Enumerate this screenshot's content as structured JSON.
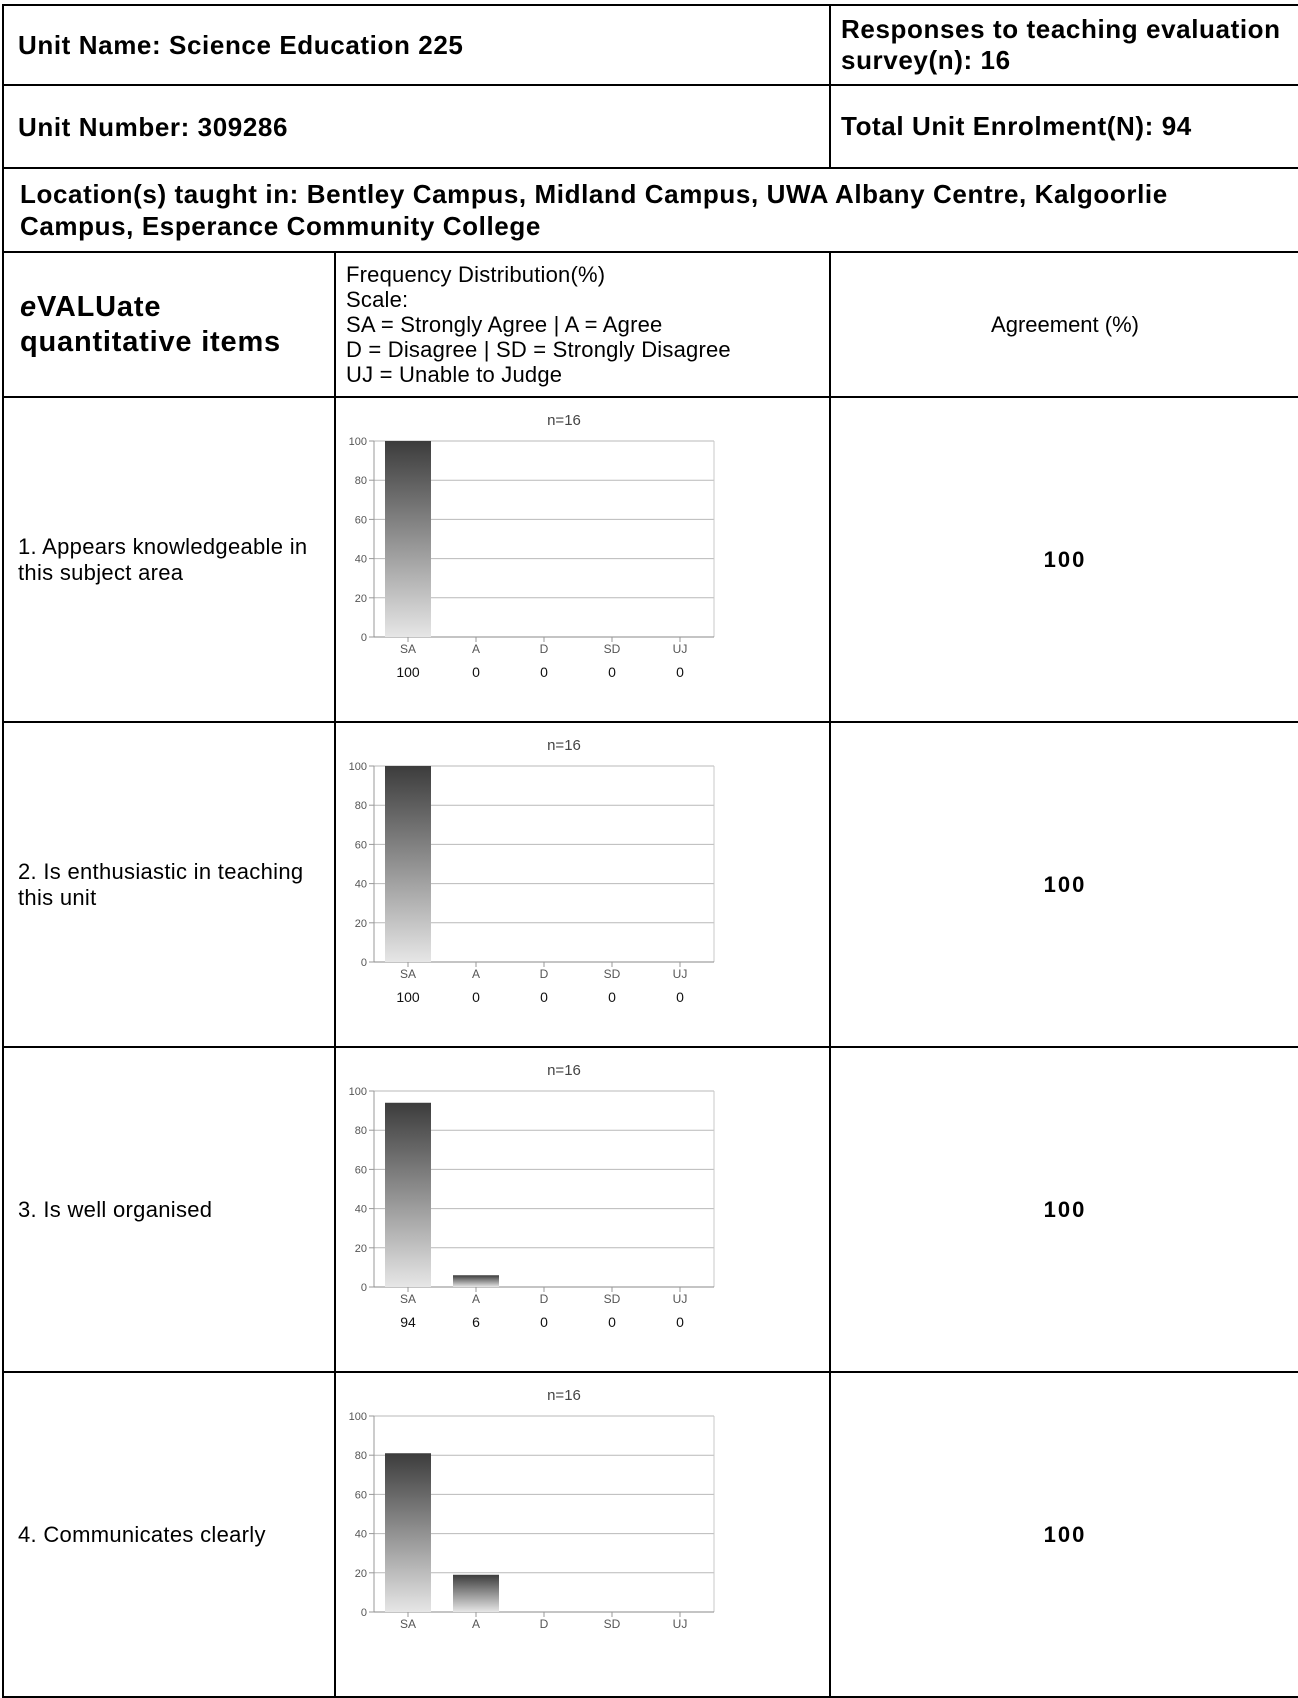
{
  "header": {
    "unit_name": "Unit Name: Science Education 225",
    "responses": "Responses to teaching evaluation survey(n): 16",
    "unit_number": "Unit Number: 309286",
    "enrolment": "Total Unit Enrolment(N): 94",
    "locations": "Location(s) taught in: Bentley Campus, Midland Campus, UWA Albany Centre, Kalgoorlie Campus, Esperance Community College"
  },
  "columns": {
    "items_title_prefix": "e",
    "items_title_rest": "VALUate quantitative items",
    "freq_lines": [
      "Frequency Distribution(%)",
      "Scale:",
      "SA = Strongly Agree | A = Agree",
      "D = Disagree | SD = Strongly Disagree",
      "UJ = Unable to Judge"
    ],
    "agreement_header": "Agreement (%)"
  },
  "chart_data": [
    {
      "type": "bar",
      "title": "n=16",
      "categories": [
        "SA",
        "A",
        "D",
        "SD",
        "UJ"
      ],
      "values": [
        100,
        0,
        0,
        0,
        0
      ],
      "value_labels": [
        "100",
        "0",
        "0",
        "0",
        "0"
      ],
      "ylim": [
        0,
        100
      ],
      "yticks": [
        "0",
        "20",
        "40",
        "60",
        "80",
        "100"
      ],
      "grid": true
    },
    {
      "type": "bar",
      "title": "n=16",
      "categories": [
        "SA",
        "A",
        "D",
        "SD",
        "UJ"
      ],
      "values": [
        100,
        0,
        0,
        0,
        0
      ],
      "value_labels": [
        "100",
        "0",
        "0",
        "0",
        "0"
      ],
      "ylim": [
        0,
        100
      ],
      "yticks": [
        "0",
        "20",
        "40",
        "60",
        "80",
        "100"
      ],
      "grid": true
    },
    {
      "type": "bar",
      "title": "n=16",
      "categories": [
        "SA",
        "A",
        "D",
        "SD",
        "UJ"
      ],
      "values": [
        94,
        6,
        0,
        0,
        0
      ],
      "value_labels": [
        "94",
        "6",
        "0",
        "0",
        "0"
      ],
      "ylim": [
        0,
        100
      ],
      "yticks": [
        "0",
        "20",
        "40",
        "60",
        "80",
        "100"
      ],
      "grid": true
    },
    {
      "type": "bar",
      "title": "n=16",
      "categories": [
        "SA",
        "A",
        "D",
        "SD",
        "UJ"
      ],
      "values": [
        81,
        19,
        0,
        0,
        0
      ],
      "value_labels": [],
      "ylim": [
        0,
        100
      ],
      "yticks": [
        "0",
        "20",
        "40",
        "60",
        "80",
        "100"
      ],
      "grid": true
    }
  ],
  "rows": [
    {
      "item": "1. Appears knowledgeable in this subject area",
      "agreement": "100"
    },
    {
      "item": "2. Is enthusiastic in teaching this unit",
      "agreement": "100"
    },
    {
      "item": "3. Is well organised",
      "agreement": "100"
    },
    {
      "item": "4. Communicates clearly",
      "agreement": "100"
    }
  ]
}
